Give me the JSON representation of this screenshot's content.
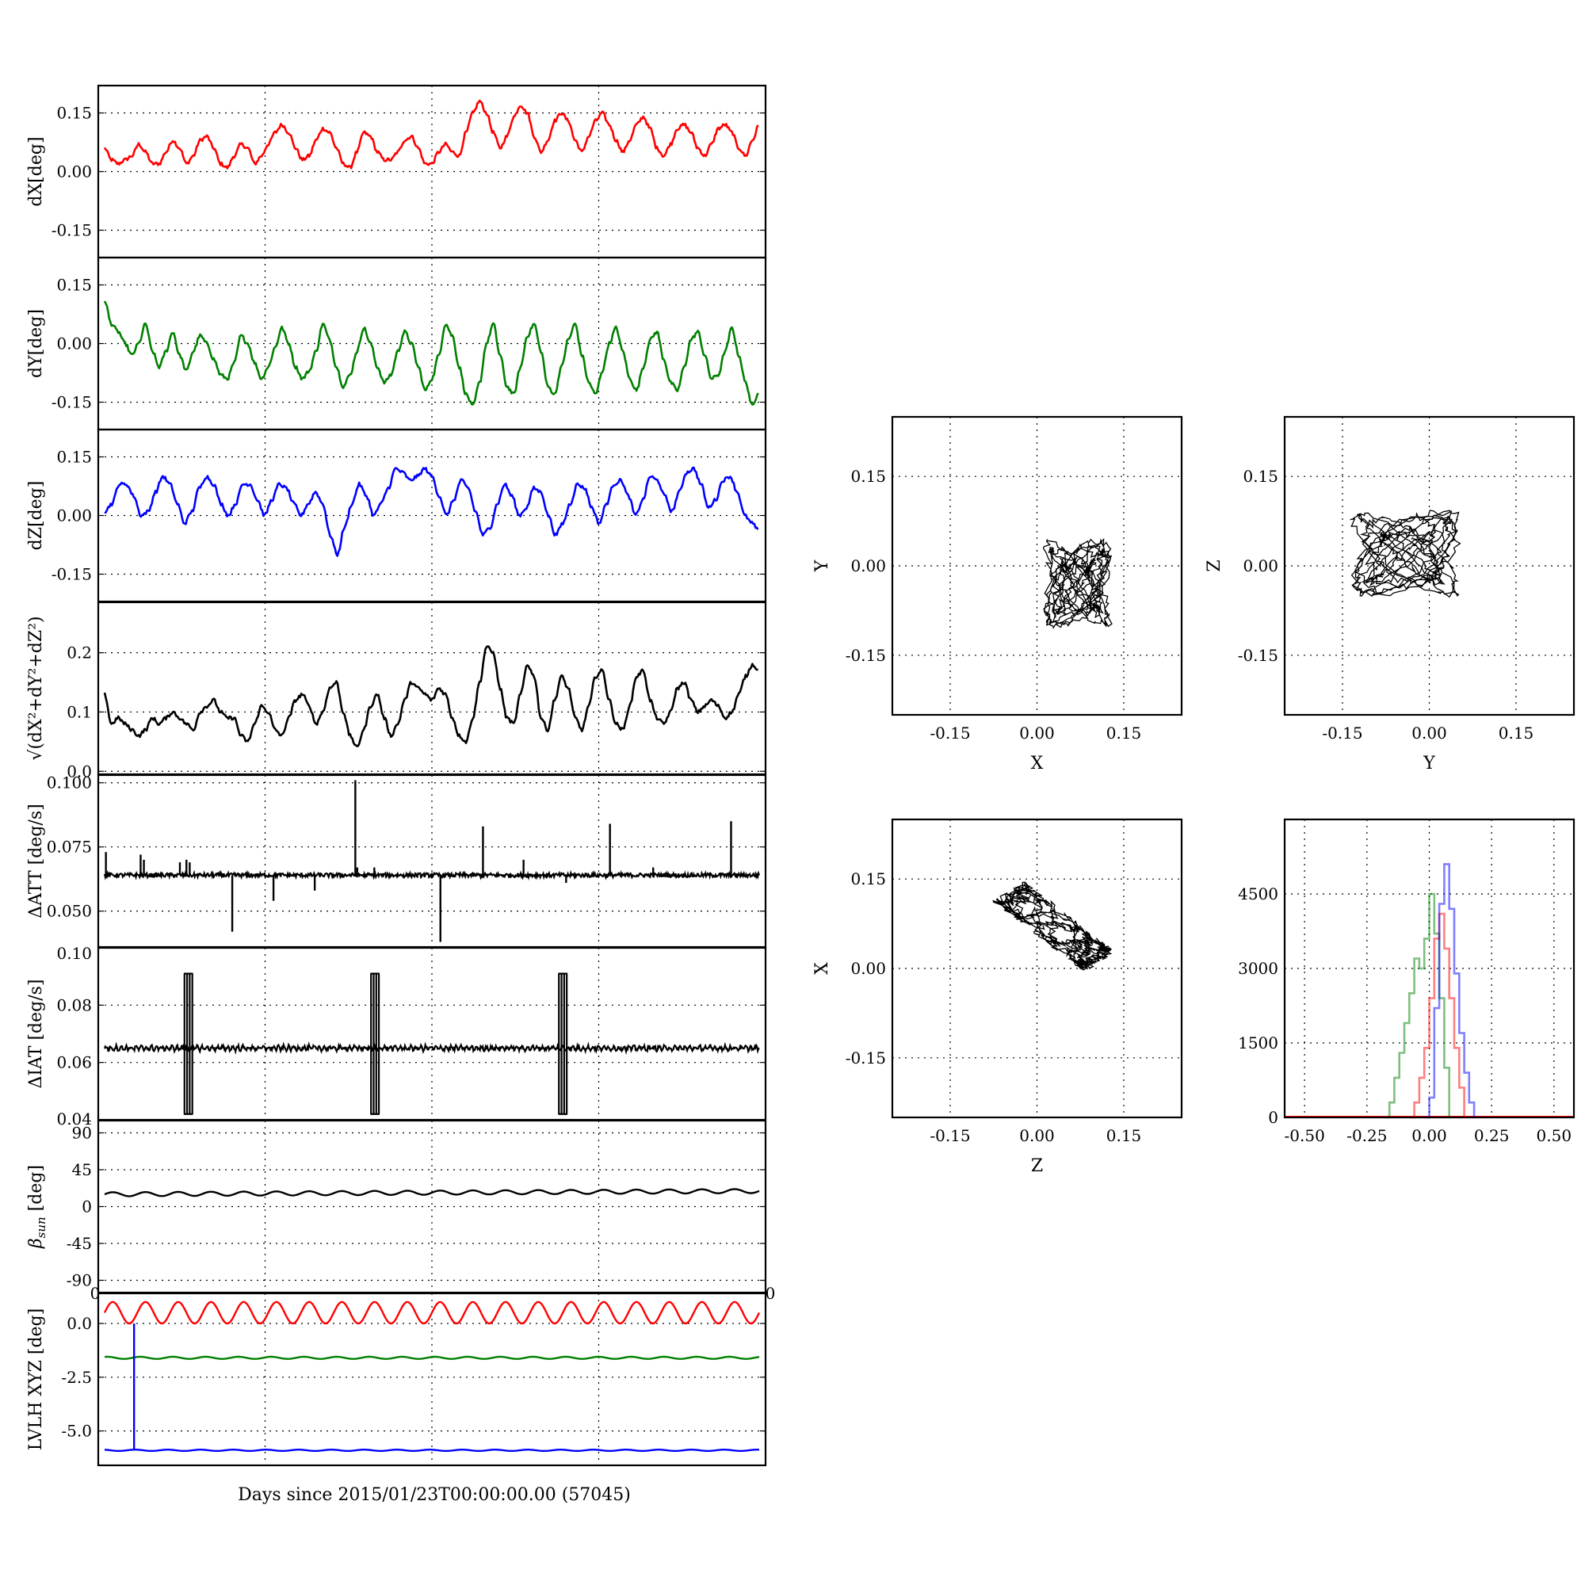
{
  "figure": {
    "shared_xlabel": "Days since 2015/01/23T00:00:00.00 (57045)",
    "scatter_color": "#000000"
  },
  "chart_data": [
    {
      "type": "line",
      "id": "dx",
      "ylabel": "dX[deg]",
      "yticks": [
        "0.15",
        "0.00",
        "-0.15"
      ],
      "ytick_values": [
        0.15,
        0.0,
        -0.15
      ],
      "ylim": [
        -0.22,
        0.22
      ],
      "xlim": [
        0,
        1
      ],
      "color": "#ff0000",
      "series": [
        {
          "values": [
            0.06,
            0.03,
            0.02,
            0.03,
            0.04,
            0.07,
            0.05,
            0.02,
            0.02,
            0.05,
            0.08,
            0.06,
            0.02,
            0.04,
            0.08,
            0.09,
            0.06,
            0.02,
            0.01,
            0.04,
            0.07,
            0.06,
            0.02,
            0.04,
            0.07,
            0.1,
            0.12,
            0.1,
            0.06,
            0.03,
            0.04,
            0.08,
            0.11,
            0.1,
            0.06,
            0.02,
            0.01,
            0.05,
            0.1,
            0.09,
            0.05,
            0.03,
            0.03,
            0.05,
            0.08,
            0.09,
            0.06,
            0.02,
            0.02,
            0.05,
            0.07,
            0.05,
            0.04,
            0.1,
            0.15,
            0.18,
            0.15,
            0.1,
            0.06,
            0.09,
            0.14,
            0.17,
            0.15,
            0.09,
            0.05,
            0.08,
            0.13,
            0.15,
            0.13,
            0.08,
            0.05,
            0.09,
            0.13,
            0.15,
            0.12,
            0.08,
            0.05,
            0.08,
            0.12,
            0.14,
            0.11,
            0.06,
            0.04,
            0.07,
            0.11,
            0.12,
            0.1,
            0.06,
            0.04,
            0.07,
            0.11,
            0.12,
            0.1,
            0.06,
            0.04,
            0.08,
            0.12
          ]
        }
      ]
    },
    {
      "type": "line",
      "id": "dy",
      "ylabel": "dY[deg]",
      "yticks": [
        "0.15",
        "0.00",
        "-0.15"
      ],
      "ytick_values": [
        0.15,
        0.0,
        -0.15
      ],
      "ylim": [
        -0.22,
        0.22
      ],
      "xlim": [
        0,
        1
      ],
      "color": "#008000",
      "series": [
        {
          "values": [
            0.11,
            0.05,
            0.03,
            0.0,
            -0.03,
            0.0,
            0.05,
            -0.02,
            -0.06,
            -0.02,
            0.03,
            -0.03,
            -0.07,
            -0.02,
            0.02,
            0.0,
            -0.04,
            -0.08,
            -0.09,
            -0.05,
            0.02,
            0.0,
            -0.05,
            -0.09,
            -0.06,
            -0.01,
            0.04,
            0.0,
            -0.06,
            -0.09,
            -0.07,
            -0.02,
            0.05,
            0.01,
            -0.06,
            -0.11,
            -0.08,
            -0.02,
            0.04,
            0.0,
            -0.06,
            -0.1,
            -0.08,
            -0.02,
            0.03,
            0.0,
            -0.06,
            -0.12,
            -0.09,
            -0.03,
            0.05,
            0.02,
            -0.06,
            -0.13,
            -0.16,
            -0.1,
            0.0,
            0.05,
            -0.03,
            -0.11,
            -0.13,
            -0.06,
            0.02,
            0.05,
            -0.02,
            -0.11,
            -0.13,
            -0.06,
            0.01,
            0.05,
            -0.03,
            -0.1,
            -0.13,
            -0.07,
            0.0,
            0.04,
            -0.02,
            -0.09,
            -0.12,
            -0.06,
            0.01,
            0.03,
            -0.04,
            -0.1,
            -0.12,
            -0.06,
            0.01,
            0.03,
            -0.03,
            -0.09,
            -0.08,
            -0.02,
            0.04,
            -0.03,
            -0.1,
            -0.16,
            -0.12
          ]
        }
      ]
    },
    {
      "type": "line",
      "id": "dz",
      "ylabel": "dZ[deg]",
      "yticks": [
        "0.15",
        "0.00",
        "-0.15"
      ],
      "ytick_values": [
        0.15,
        0.0,
        -0.15
      ],
      "ylim": [
        -0.22,
        0.22
      ],
      "xlim": [
        0,
        1
      ],
      "color": "#0000ff",
      "series": [
        {
          "values": [
            0.01,
            0.03,
            0.08,
            0.08,
            0.05,
            0.0,
            0.01,
            0.06,
            0.1,
            0.08,
            0.03,
            -0.02,
            0.01,
            0.07,
            0.1,
            0.08,
            0.03,
            0.0,
            0.03,
            0.08,
            0.08,
            0.04,
            0.0,
            0.04,
            0.08,
            0.07,
            0.03,
            0.0,
            0.03,
            0.06,
            0.03,
            -0.05,
            -0.1,
            -0.03,
            0.03,
            0.08,
            0.05,
            0.0,
            0.03,
            0.07,
            0.12,
            0.11,
            0.09,
            0.1,
            0.12,
            0.1,
            0.05,
            0.0,
            0.04,
            0.09,
            0.07,
            0.01,
            -0.05,
            -0.03,
            0.03,
            0.08,
            0.05,
            0.0,
            0.02,
            0.07,
            0.06,
            0.0,
            -0.05,
            -0.02,
            0.03,
            0.08,
            0.07,
            0.02,
            -0.02,
            0.03,
            0.08,
            0.09,
            0.05,
            0.0,
            0.04,
            0.1,
            0.09,
            0.05,
            0.01,
            0.06,
            0.11,
            0.12,
            0.08,
            0.02,
            0.04,
            0.09,
            0.1,
            0.06,
            0.0,
            -0.02,
            -0.04
          ]
        }
      ]
    },
    {
      "type": "line",
      "id": "norm",
      "ylabel": "√(dX²+dY²+dZ²)",
      "yticks": [
        "0.2",
        "0.1",
        "0.0"
      ],
      "ytick_values": [
        0.2,
        0.1,
        0.0
      ],
      "ylim": [
        -0.005,
        0.285
      ],
      "xlim": [
        0,
        1
      ],
      "color": "#000000",
      "series": [
        {
          "values": [
            0.13,
            0.08,
            0.09,
            0.08,
            0.07,
            0.06,
            0.07,
            0.09,
            0.08,
            0.09,
            0.1,
            0.09,
            0.08,
            0.07,
            0.1,
            0.11,
            0.12,
            0.1,
            0.09,
            0.09,
            0.06,
            0.05,
            0.08,
            0.11,
            0.1,
            0.07,
            0.06,
            0.09,
            0.12,
            0.13,
            0.11,
            0.08,
            0.1,
            0.14,
            0.15,
            0.1,
            0.06,
            0.04,
            0.07,
            0.11,
            0.13,
            0.09,
            0.06,
            0.08,
            0.12,
            0.15,
            0.14,
            0.13,
            0.12,
            0.14,
            0.13,
            0.09,
            0.06,
            0.05,
            0.09,
            0.15,
            0.21,
            0.2,
            0.14,
            0.09,
            0.08,
            0.13,
            0.18,
            0.16,
            0.09,
            0.07,
            0.12,
            0.16,
            0.14,
            0.09,
            0.07,
            0.11,
            0.16,
            0.17,
            0.12,
            0.08,
            0.07,
            0.11,
            0.16,
            0.17,
            0.12,
            0.09,
            0.08,
            0.1,
            0.14,
            0.15,
            0.12,
            0.1,
            0.11,
            0.12,
            0.11,
            0.09,
            0.1,
            0.13,
            0.16,
            0.18,
            0.17
          ]
        }
      ]
    },
    {
      "type": "line",
      "id": "datt",
      "ylabel": "ΔATT [deg/s]",
      "yticks": [
        "0.100",
        "0.075",
        "0.050"
      ],
      "ytick_values": [
        0.1,
        0.075,
        0.05
      ],
      "ylim": [
        0.036,
        0.103
      ],
      "xlim": [
        0,
        1
      ],
      "color": "#000000",
      "baseline": 0.064,
      "spikes": [
        {
          "x": 0.002,
          "y": 0.073
        },
        {
          "x": 0.055,
          "y": 0.072
        },
        {
          "x": 0.06,
          "y": 0.07
        },
        {
          "x": 0.115,
          "y": 0.069
        },
        {
          "x": 0.125,
          "y": 0.07
        },
        {
          "x": 0.13,
          "y": 0.069
        },
        {
          "x": 0.195,
          "y": 0.042
        },
        {
          "x": 0.258,
          "y": 0.054
        },
        {
          "x": 0.321,
          "y": 0.058
        },
        {
          "x": 0.383,
          "y": 0.101
        },
        {
          "x": 0.386,
          "y": 0.067
        },
        {
          "x": 0.412,
          "y": 0.067
        },
        {
          "x": 0.513,
          "y": 0.038
        },
        {
          "x": 0.578,
          "y": 0.083
        },
        {
          "x": 0.64,
          "y": 0.07
        },
        {
          "x": 0.705,
          "y": 0.061
        },
        {
          "x": 0.772,
          "y": 0.084
        },
        {
          "x": 0.838,
          "y": 0.067
        },
        {
          "x": 0.957,
          "y": 0.085
        }
      ]
    },
    {
      "type": "line",
      "id": "diat",
      "ylabel": "ΔIAT [deg/s]",
      "yticks": [
        "0.10",
        "0.08",
        "0.06",
        "0.04"
      ],
      "ytick_values": [
        0.1,
        0.08,
        0.06,
        0.04
      ],
      "ylim": [
        0.04,
        0.1
      ],
      "xlim": [
        0,
        1
      ],
      "color": "#000000",
      "baseline": 0.065,
      "bursts": [
        {
          "x": 0.128,
          "low": 0.042,
          "high": 0.091
        },
        {
          "x": 0.413,
          "low": 0.042,
          "high": 0.091
        },
        {
          "x": 0.7,
          "low": 0.042,
          "high": 0.091
        }
      ]
    },
    {
      "type": "line",
      "id": "beta",
      "ylabel": "β_sun [deg]",
      "yticks": [
        "90",
        "45",
        "0",
        "-45",
        "-90"
      ],
      "ytick_values": [
        90,
        45,
        0,
        -45,
        -90
      ],
      "ylim": [
        -105,
        105
      ],
      "xlim": [
        0,
        1
      ],
      "color": "#000000",
      "mean": 15,
      "amplitude": 2.5,
      "cycles": 20
    },
    {
      "type": "line",
      "id": "lvlh",
      "ylabel": "LVLH XYZ [deg]",
      "yticks": [
        "0.0",
        "-2.5",
        "-5.0"
      ],
      "ytick_values": [
        0.0,
        -2.5,
        -5.0
      ],
      "ylim": [
        -6.6,
        1.4
      ],
      "xlim": [
        0,
        1
      ],
      "xlabel": "Days since 2015/01/23T00:00:00.00 (57045)",
      "xtick_left": "0",
      "xtick_right": "0",
      "series": [
        {
          "color": "#ff0000",
          "mean": 0.5,
          "amplitude": 0.5,
          "cycles": 20
        },
        {
          "color": "#008000",
          "mean": -1.6,
          "amplitude": 0.05,
          "cycles": 20
        },
        {
          "color": "#0000ff",
          "mean": -5.9,
          "amplitude": 0.03,
          "cycles": 20,
          "spike_x": 0.045,
          "spike_top": 0.0
        }
      ]
    },
    {
      "type": "scatter",
      "id": "xy",
      "xlabel": "X",
      "ylabel": "Y",
      "xticks": [
        "-0.15",
        "0.00",
        "0.15"
      ],
      "yticks": [
        "0.15",
        "0.00",
        "-0.15"
      ],
      "tick_values": [
        -0.15,
        0.0,
        0.15
      ],
      "xlim": [
        -0.25,
        0.25
      ],
      "ylim": [
        -0.25,
        0.25
      ],
      "cx": 0.07,
      "cy": -0.03,
      "rx": 0.055,
      "ry": 0.07
    },
    {
      "type": "scatter",
      "id": "yz",
      "xlabel": "Y",
      "ylabel": "Z",
      "xticks": [
        "-0.15",
        "0.00",
        "0.15"
      ],
      "yticks": [
        "0.15",
        "0.00",
        "-0.15"
      ],
      "tick_values": [
        -0.15,
        0.0,
        0.15
      ],
      "xlim": [
        -0.25,
        0.25
      ],
      "ylim": [
        -0.25,
        0.25
      ],
      "cx": -0.04,
      "cy": 0.02,
      "rx": 0.09,
      "ry": 0.07
    },
    {
      "type": "scatter",
      "id": "zx",
      "xlabel": "Z",
      "ylabel": "X",
      "xticks": [
        "-0.15",
        "0.00",
        "0.15"
      ],
      "yticks": [
        "0.15",
        "0.00",
        "-0.15"
      ],
      "tick_values": [
        -0.15,
        0.0,
        0.15
      ],
      "xlim": [
        -0.25,
        0.25
      ],
      "ylim": [
        -0.25,
        0.25
      ],
      "cx": 0.03,
      "cy": 0.07,
      "along": [
        0.16,
        -0.12
      ],
      "width": 0.03
    },
    {
      "type": "area",
      "id": "hist",
      "xticks": [
        "-0.50",
        "-0.25",
        "0.00",
        "0.25",
        "0.50"
      ],
      "xtick_values": [
        -0.5,
        -0.25,
        0.0,
        0.25,
        0.5
      ],
      "yticks": [
        "4500",
        "3000",
        "1500",
        "0"
      ],
      "ytick_values": [
        4500,
        3000,
        1500,
        0
      ],
      "xlim": [
        -0.58,
        0.58
      ],
      "ylim": [
        0,
        6000
      ],
      "series": [
        {
          "color": "#008000",
          "bins": [
            [
              -0.18,
              0
            ],
            [
              -0.16,
              300
            ],
            [
              -0.14,
              800
            ],
            [
              -0.12,
              1300
            ],
            [
              -0.1,
              1900
            ],
            [
              -0.08,
              2500
            ],
            [
              -0.06,
              3200
            ],
            [
              -0.04,
              3000
            ],
            [
              -0.02,
              3600
            ],
            [
              0.0,
              4500
            ],
            [
              0.02,
              3700
            ],
            [
              0.04,
              2400
            ],
            [
              0.06,
              1000
            ],
            [
              0.08,
              0
            ]
          ]
        },
        {
          "color": "#ff0000",
          "bins": [
            [
              -0.08,
              0
            ],
            [
              -0.06,
              300
            ],
            [
              -0.04,
              800
            ],
            [
              -0.02,
              1400
            ],
            [
              0.0,
              2400
            ],
            [
              0.02,
              3600
            ],
            [
              0.04,
              4100
            ],
            [
              0.06,
              3400
            ],
            [
              0.08,
              2400
            ],
            [
              0.1,
              1400
            ],
            [
              0.12,
              600
            ],
            [
              0.14,
              0
            ]
          ]
        },
        {
          "color": "#0000ff",
          "bins": [
            [
              -0.02,
              0
            ],
            [
              0.0,
              400
            ],
            [
              0.02,
              2200
            ],
            [
              0.04,
              4300
            ],
            [
              0.06,
              5100
            ],
            [
              0.08,
              4200
            ],
            [
              0.1,
              2900
            ],
            [
              0.12,
              1700
            ],
            [
              0.14,
              900
            ],
            [
              0.16,
              300
            ],
            [
              0.18,
              0
            ]
          ]
        }
      ]
    }
  ]
}
